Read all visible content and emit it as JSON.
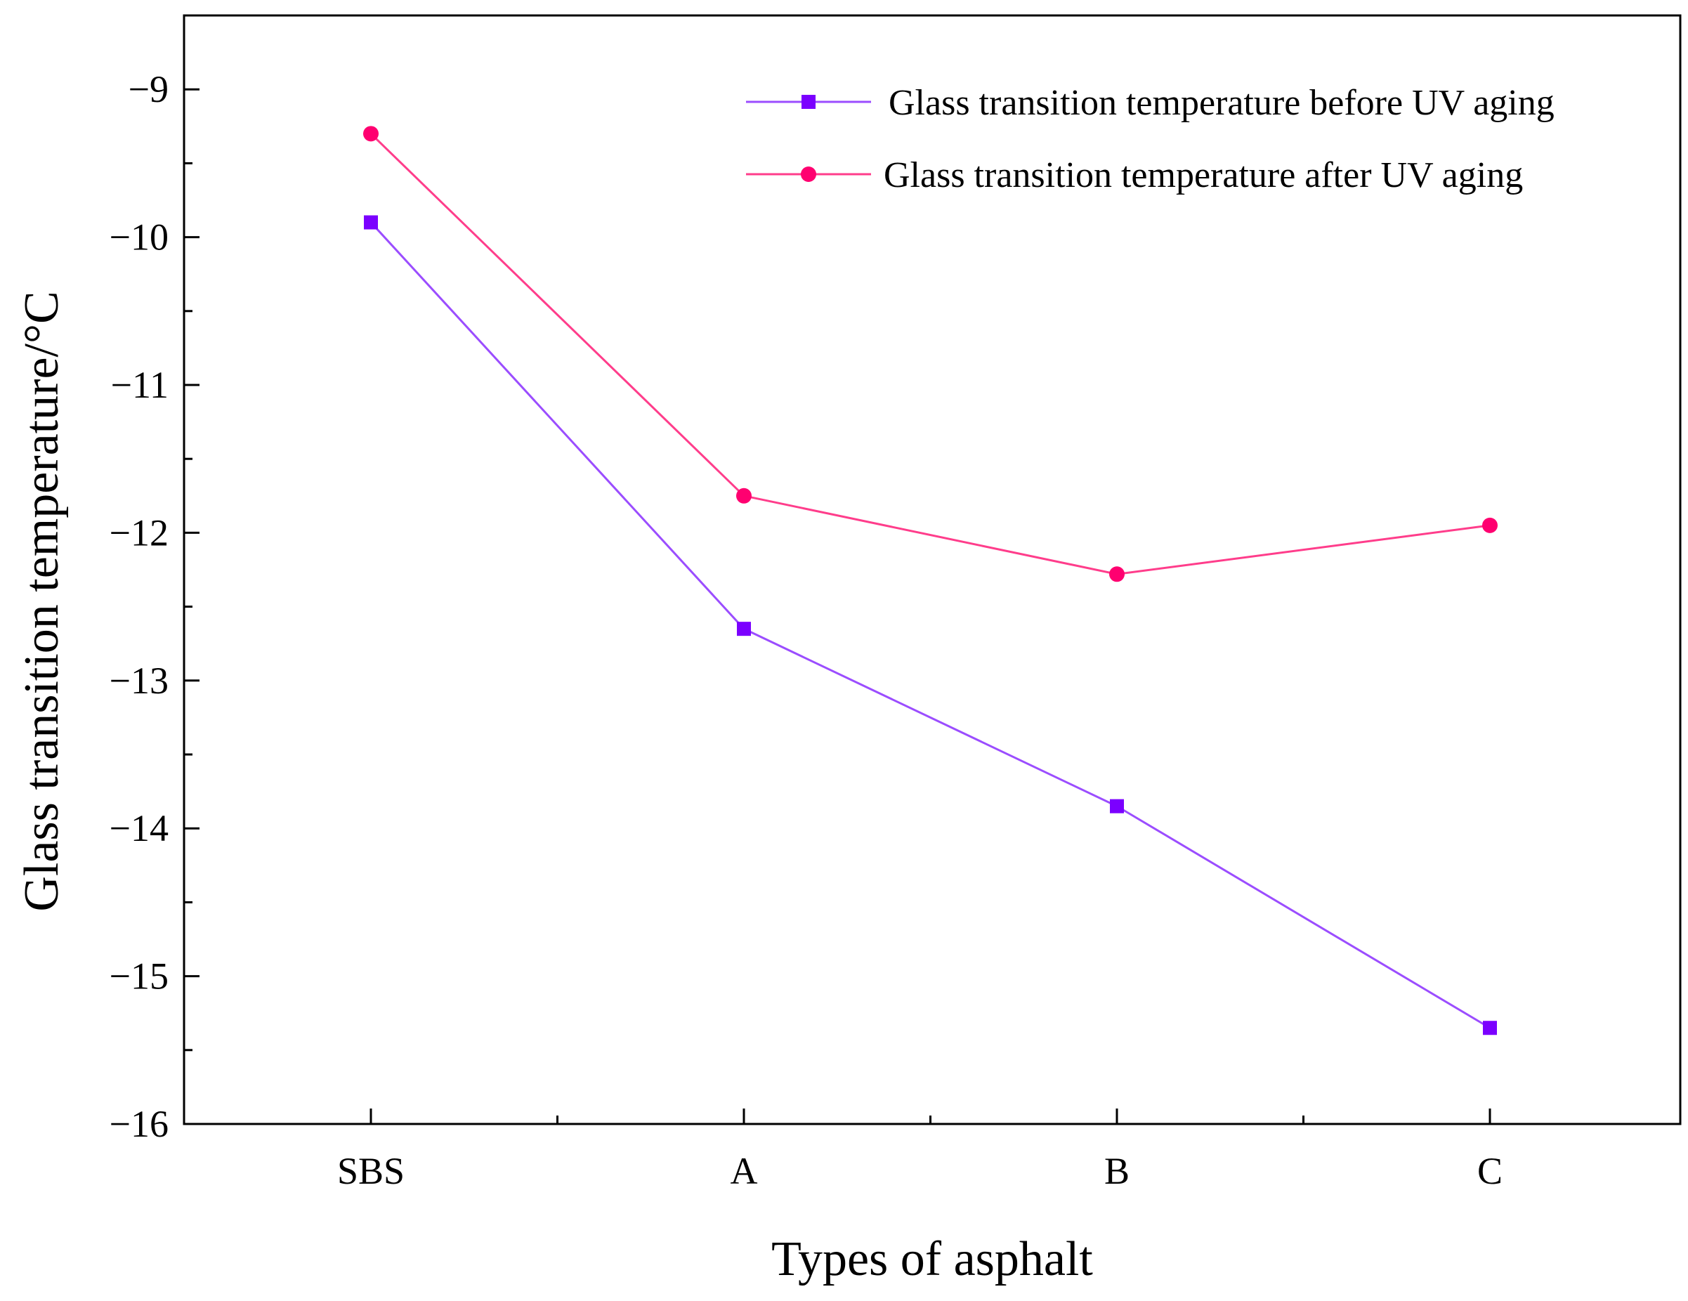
{
  "chart_data": {
    "type": "line",
    "title": "",
    "xlabel": "Types of asphalt",
    "ylabel": "Glass transition temperature/°C",
    "categories": [
      "SBS",
      "A",
      "B",
      "C"
    ],
    "ylim": [
      -16,
      -8.5
    ],
    "yticks": [
      -16,
      -15,
      -14,
      -13,
      -12,
      -11,
      -10,
      -9
    ],
    "ytick_labels": [
      "−16",
      "−15",
      "−14",
      "−13",
      "−12",
      "−11",
      "−10",
      "−9"
    ],
    "grid": false,
    "legend_position": "top-right",
    "series": [
      {
        "name": "Glass transition temperature before UV aging",
        "values": [
          -9.9,
          -12.65,
          -13.85,
          -15.35
        ],
        "color": "#9b4dff",
        "marker_color": "#7b00ff",
        "marker": "square"
      },
      {
        "name": "Glass transition temperature after UV aging",
        "values": [
          -9.3,
          -11.75,
          -12.28,
          -11.95
        ],
        "color": "#ff3d8b",
        "marker_color": "#ff0070",
        "marker": "circle"
      }
    ]
  }
}
